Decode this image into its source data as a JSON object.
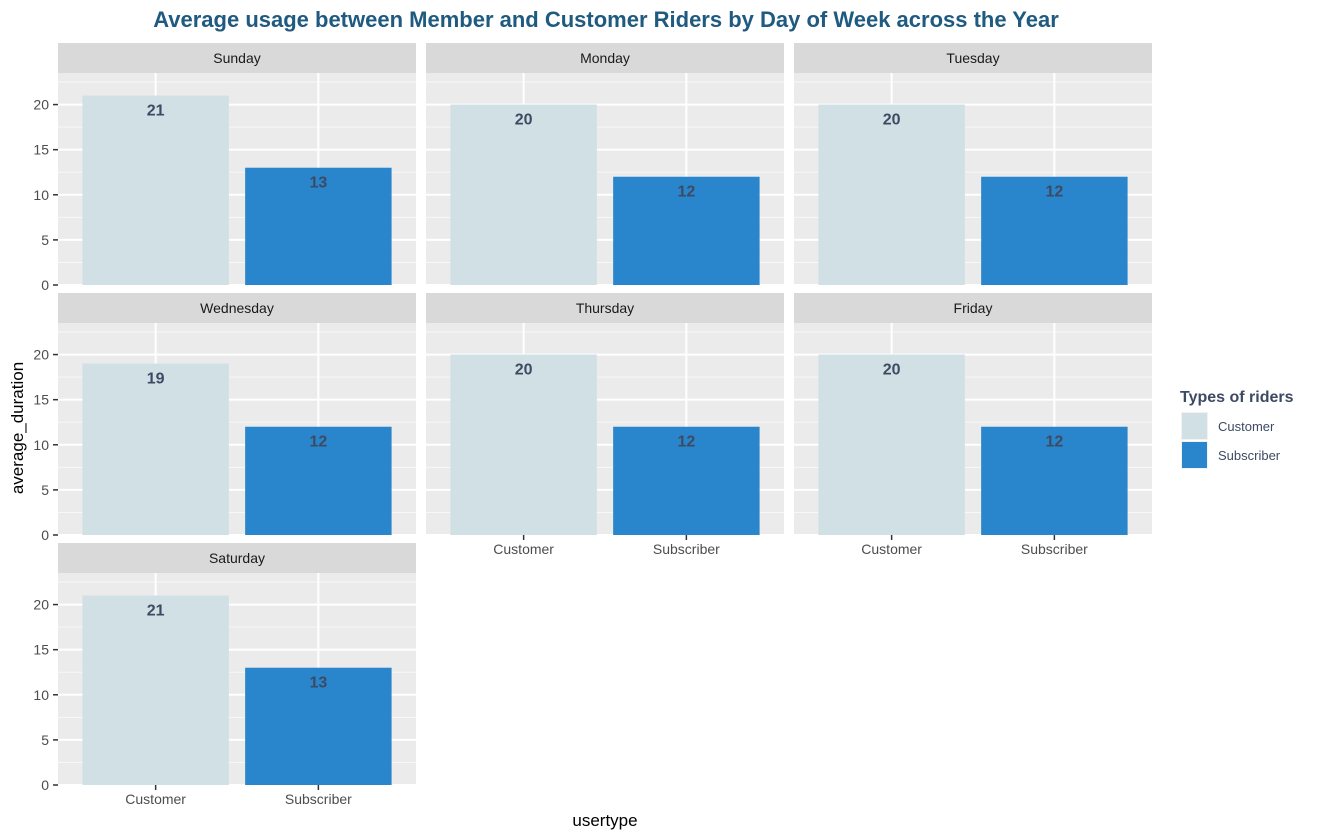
{
  "chart_data": {
    "type": "bar",
    "title": "Average usage between Member and Customer Riders by Day of Week across the Year",
    "xlabel": "usertype",
    "ylabel": "average_duration",
    "ylim": [
      0,
      23.5
    ],
    "yticks": [
      0,
      5,
      10,
      15,
      20
    ],
    "grid": true,
    "legend_position": "right",
    "legend_title": "Types of riders",
    "categories": [
      "Customer",
      "Subscriber"
    ],
    "colors": {
      "Customer": "#d0e0e4",
      "Subscriber": "#2986cc"
    },
    "panels": [
      {
        "name": "Sunday",
        "values": [
          21,
          13
        ]
      },
      {
        "name": "Monday",
        "values": [
          20,
          12
        ]
      },
      {
        "name": "Tuesday",
        "values": [
          20,
          12
        ]
      },
      {
        "name": "Wednesday",
        "values": [
          19,
          12
        ]
      },
      {
        "name": "Thursday",
        "values": [
          20,
          12
        ]
      },
      {
        "name": "Friday",
        "values": [
          20,
          12
        ]
      },
      {
        "name": "Saturday",
        "values": [
          21,
          13
        ]
      }
    ]
  }
}
